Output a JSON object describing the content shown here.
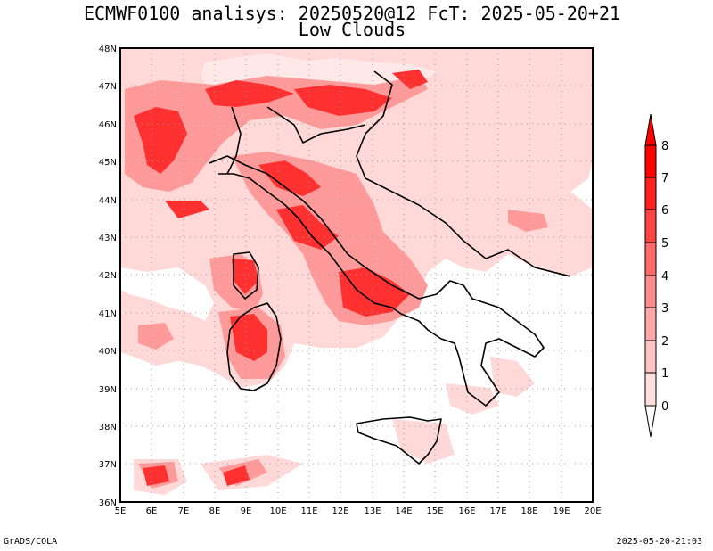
{
  "title_line1": "ECMWF0100 analisys: 20250520@12 FcT: 2025-05-20+21",
  "title_line2": "Low Clouds",
  "footer_left": "GrADS/COLA",
  "footer_right": "2025-05-20-21:03",
  "map": {
    "lon_labels": [
      "5E",
      "6E",
      "7E",
      "8E",
      "9E",
      "10E",
      "11E",
      "12E",
      "13E",
      "14E",
      "15E",
      "16E",
      "17E",
      "18E",
      "19E",
      "20E"
    ],
    "lat_labels": [
      "48N",
      "47N",
      "46N",
      "45N",
      "44N",
      "43N",
      "42N",
      "41N",
      "40N",
      "39N",
      "38N",
      "37N",
      "36N"
    ],
    "lon_range": [
      5,
      20
    ],
    "lat_range": [
      36,
      48
    ],
    "grid": "dotted"
  },
  "colorbar": {
    "labels": [
      "8",
      "7",
      "6",
      "5",
      "4",
      "3",
      "2",
      "1",
      "0"
    ],
    "colors": [
      "#ff0000",
      "#ff2020",
      "#ff4444",
      "#ff6a6a",
      "#ff8c8c",
      "#ffa8a8",
      "#ffc4c4",
      "#ffdede"
    ]
  },
  "colors": {
    "light": "#ffd8d8",
    "mid": "#ff9a9a",
    "strong": "#ff3030",
    "max": "#ff0000"
  }
}
